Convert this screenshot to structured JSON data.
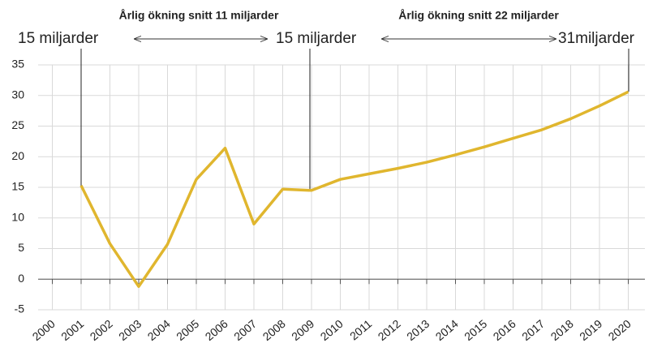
{
  "chart_data": {
    "type": "line",
    "categories": [
      "2000",
      "2001",
      "2002",
      "2003",
      "2004",
      "2005",
      "2006",
      "2007",
      "2008",
      "2009",
      "2010",
      "2011",
      "2012",
      "2013",
      "2014",
      "2015",
      "2016",
      "2017",
      "2018",
      "2019",
      "2020"
    ],
    "series": [
      {
        "name": "Årlig ökning",
        "color": "#e0b62e",
        "values": [
          null,
          15.3,
          5.8,
          -1.2,
          5.7,
          16.3,
          21.4,
          9.0,
          14.7,
          14.5,
          16.3,
          17.2,
          18.1,
          19.1,
          20.3,
          21.6,
          23.0,
          24.4,
          26.2,
          28.3,
          30.6
        ]
      }
    ],
    "ylim": [
      -5,
      35
    ],
    "yticks": [
      -5,
      0,
      5,
      10,
      15,
      20,
      25,
      30,
      35
    ],
    "grid": true,
    "annotations": [
      "15 miljarder",
      "15 miljarder",
      "31miljarder",
      "Årlig ökning snitt 11 miljarder",
      "Årlig ökning snitt 22 miljarder"
    ]
  }
}
